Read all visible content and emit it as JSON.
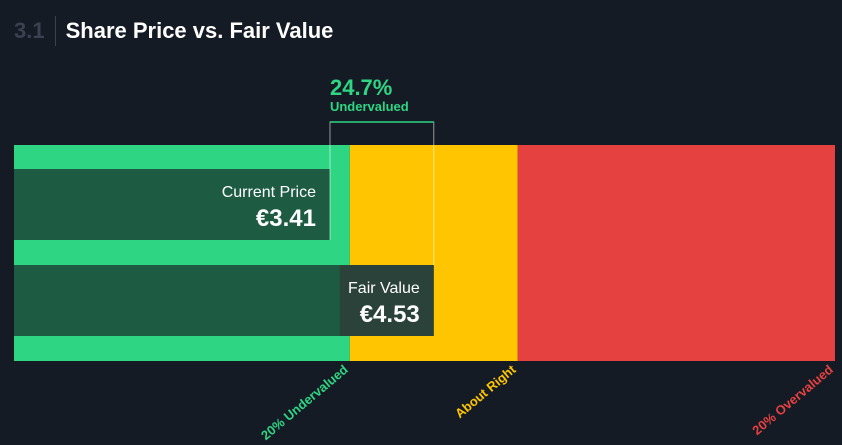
{
  "header": {
    "section_number": "3.1",
    "title": "Share Price vs. Fair Value"
  },
  "chart_data": {
    "type": "bar",
    "currency": "€",
    "current_price": {
      "label": "Current Price",
      "value": 3.41,
      "display": "€3.41"
    },
    "fair_value": {
      "label": "Fair Value",
      "value": 4.53,
      "display": "€4.53"
    },
    "discount": {
      "percent": "24.7%",
      "label": "Undervalued"
    },
    "x_domain": [
      0,
      8.86
    ],
    "zones": [
      {
        "name": "20% Undervalued",
        "from": 0,
        "to": 3.624,
        "color": "#2ed684"
      },
      {
        "name": "About Right",
        "from": 3.624,
        "to": 5.436,
        "color": "#ffc600"
      },
      {
        "name": "20% Overvalued",
        "from": 5.436,
        "to": 8.86,
        "color": "#e64141"
      }
    ],
    "zone_labels": [
      "20% Undervalued",
      "About Right",
      "20% Overvalued"
    ],
    "colors": {
      "background": "#151b24",
      "bar_fill": "#1e5b43",
      "green": "#2ed684",
      "yellow": "#ffc600",
      "red": "#e64141"
    }
  }
}
